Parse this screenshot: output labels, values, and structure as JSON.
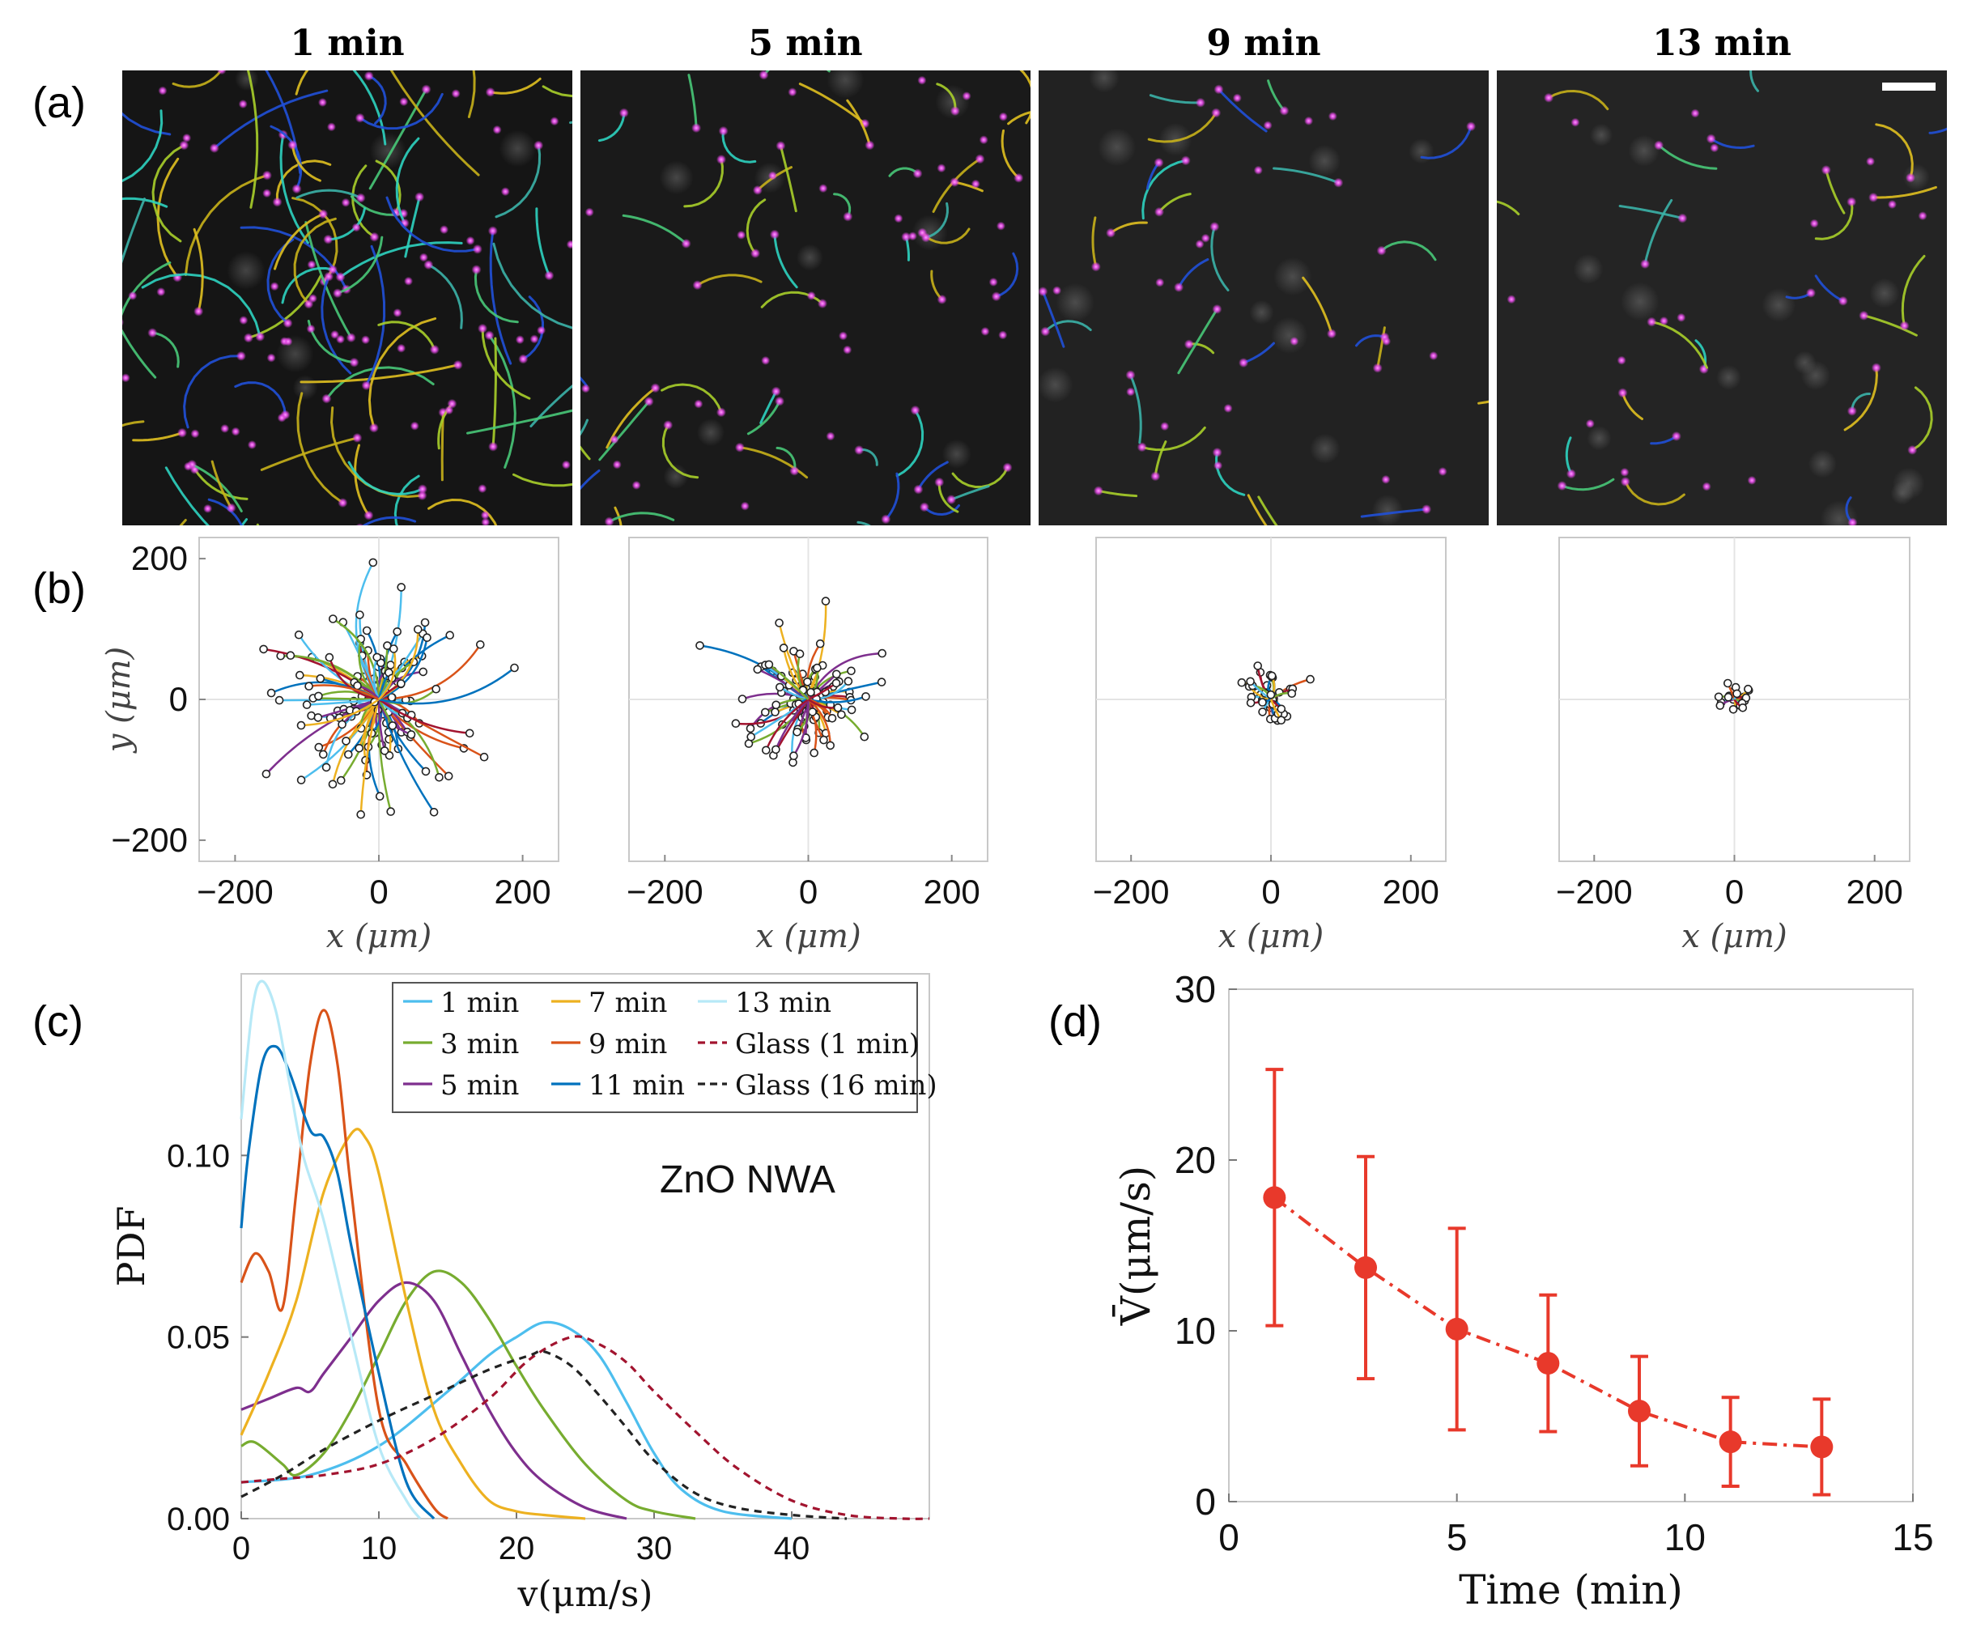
{
  "panel_labels": {
    "a": "(a)",
    "b": "(b)",
    "c": "(c)",
    "d": "(d)"
  },
  "panel_a": {
    "times": [
      "1 min",
      "5 min",
      "9 min",
      "13 min"
    ],
    "density": [
      1.0,
      0.55,
      0.35,
      0.3
    ],
    "track_colors": [
      "#2ed3c0",
      "#3bb3a8",
      "#c8b11a",
      "#a8cf2a",
      "#2050d8",
      "#48c878",
      "#e0c020"
    ],
    "dot_color": "#e64be8"
  },
  "chart_data": [
    {
      "type": "scatter",
      "panel": "b",
      "time": "1 min",
      "xlabel": "x (μm)",
      "ylabel": "y (μm)",
      "xticks": [
        -200,
        0,
        200
      ],
      "yticks": [
        200,
        0,
        -200
      ],
      "xlim": [
        -250,
        250
      ],
      "ylim": [
        -230,
        230
      ],
      "spread": 95,
      "n_tracks": 140,
      "grid": true,
      "note": "trajectories from origin, open circles at endpoints"
    },
    {
      "type": "scatter",
      "panel": "b",
      "time": "5 min",
      "xlabel": "x (μm)",
      "xticks": [
        -200,
        0,
        200
      ],
      "xlim": [
        -250,
        250
      ],
      "ylim": [
        -230,
        230
      ],
      "spread": 50,
      "n_tracks": 110,
      "grid": true
    },
    {
      "type": "scatter",
      "panel": "b",
      "time": "9 min",
      "xlabel": "x (μm)",
      "xticks": [
        -200,
        0,
        200
      ],
      "xlim": [
        -250,
        250
      ],
      "ylim": [
        -230,
        230
      ],
      "spread": 28,
      "n_tracks": 45,
      "grid": true
    },
    {
      "type": "scatter",
      "panel": "b",
      "time": "13 min",
      "xlabel": "x (μm)",
      "xticks": [
        -200,
        0,
        200
      ],
      "xlim": [
        -250,
        250
      ],
      "ylim": [
        -230,
        230
      ],
      "spread": 18,
      "n_tracks": 22,
      "grid": true
    },
    {
      "type": "line",
      "panel": "c",
      "xlabel": "v(μm/s)",
      "ylabel": "PDF",
      "xlim": [
        0,
        50
      ],
      "ylim": [
        0,
        0.15
      ],
      "xticks": [
        0,
        10,
        20,
        30,
        40
      ],
      "yticks": [
        0.0,
        0.05,
        0.1
      ],
      "ytick_labels": [
        "0.00",
        "0.05",
        "0.10"
      ],
      "annotation": "ZnO NWA",
      "legend_position": "top-right",
      "series": [
        {
          "name": "1 min",
          "color": "#4dbeee",
          "dash": "solid",
          "x": [
            0,
            5,
            10,
            15,
            18,
            20,
            22,
            24,
            26,
            28,
            30,
            32,
            35,
            40
          ],
          "y": [
            0.01,
            0.012,
            0.02,
            0.035,
            0.045,
            0.05,
            0.054,
            0.052,
            0.045,
            0.032,
            0.018,
            0.008,
            0.002,
            0.0
          ]
        },
        {
          "name": "3 min",
          "color": "#77ac30",
          "dash": "solid",
          "x": [
            0,
            1,
            3,
            4,
            6,
            8,
            10,
            12,
            14,
            16,
            18,
            20,
            22,
            25,
            28,
            30,
            33
          ],
          "y": [
            0.02,
            0.021,
            0.015,
            0.012,
            0.018,
            0.03,
            0.045,
            0.06,
            0.068,
            0.065,
            0.055,
            0.042,
            0.03,
            0.015,
            0.005,
            0.002,
            0.0
          ]
        },
        {
          "name": "5 min",
          "color": "#7e2f8e",
          "dash": "solid",
          "x": [
            0,
            2,
            4,
            5,
            6,
            8,
            10,
            12,
            14,
            16,
            18,
            20,
            22,
            25,
            28
          ],
          "y": [
            0.03,
            0.033,
            0.036,
            0.035,
            0.04,
            0.05,
            0.06,
            0.065,
            0.06,
            0.045,
            0.03,
            0.018,
            0.01,
            0.003,
            0.0
          ]
        },
        {
          "name": "7 min",
          "color": "#edb120",
          "dash": "solid",
          "x": [
            0,
            2,
            4,
            6,
            8,
            9,
            10,
            12,
            14,
            16,
            18,
            20,
            22,
            25
          ],
          "y": [
            0.023,
            0.04,
            0.06,
            0.09,
            0.106,
            0.105,
            0.095,
            0.06,
            0.03,
            0.015,
            0.005,
            0.002,
            0.001,
            0.0
          ]
        },
        {
          "name": "9 min",
          "color": "#d95319",
          "dash": "solid",
          "x": [
            0,
            1,
            2,
            3,
            4,
            5,
            6,
            7,
            8,
            10,
            12,
            14,
            15
          ],
          "y": [
            0.065,
            0.073,
            0.068,
            0.058,
            0.09,
            0.125,
            0.14,
            0.125,
            0.09,
            0.03,
            0.015,
            0.003,
            0.0
          ]
        },
        {
          "name": "11 min",
          "color": "#0072bd",
          "dash": "solid",
          "x": [
            0,
            0.5,
            1.5,
            2.5,
            3.5,
            5,
            6,
            7,
            8,
            10,
            12,
            14
          ],
          "y": [
            0.08,
            0.1,
            0.125,
            0.13,
            0.123,
            0.107,
            0.105,
            0.095,
            0.075,
            0.04,
            0.01,
            0.0
          ]
        },
        {
          "name": "13 min",
          "color": "#b7e9f7",
          "dash": "solid",
          "x": [
            0,
            0.8,
            1.5,
            2.5,
            3.5,
            4.5,
            6,
            8,
            10,
            12,
            13
          ],
          "y": [
            0.11,
            0.14,
            0.148,
            0.14,
            0.12,
            0.1,
            0.082,
            0.05,
            0.02,
            0.005,
            0.0
          ]
        },
        {
          "name": "Glass (1 min)",
          "color": "#a2142f",
          "dash": "dashed",
          "x": [
            0,
            3,
            6,
            10,
            14,
            18,
            21,
            24,
            26,
            28,
            30,
            33,
            36,
            40,
            44,
            48,
            50
          ],
          "y": [
            0.01,
            0.011,
            0.012,
            0.015,
            0.022,
            0.033,
            0.044,
            0.05,
            0.048,
            0.043,
            0.035,
            0.024,
            0.014,
            0.005,
            0.001,
            0.0,
            0.0
          ]
        },
        {
          "name": "Glass (16 min)",
          "color": "#222222",
          "dash": "dashed",
          "x": [
            0,
            3,
            6,
            10,
            14,
            18,
            21,
            22,
            24,
            26,
            28,
            30,
            33,
            36,
            40,
            44
          ],
          "y": [
            0.006,
            0.012,
            0.019,
            0.027,
            0.034,
            0.041,
            0.045,
            0.046,
            0.042,
            0.034,
            0.025,
            0.016,
            0.007,
            0.003,
            0.001,
            0.0
          ]
        }
      ]
    },
    {
      "type": "line",
      "panel": "d",
      "xlabel": "Time (min)",
      "ylabel": "V̄(μm/s)",
      "xlim": [
        0,
        15
      ],
      "ylim": [
        0,
        30
      ],
      "xticks": [
        0,
        5,
        10,
        15
      ],
      "yticks": [
        0,
        10,
        20,
        30
      ],
      "color": "#e8392b",
      "dash": "dash-dot",
      "marker": "circle",
      "x": [
        1,
        3,
        5,
        7,
        9,
        11,
        13
      ],
      "y": [
        17.8,
        13.7,
        10.1,
        8.1,
        5.3,
        3.5,
        3.2
      ],
      "yerr": [
        7.5,
        6.5,
        5.9,
        4.0,
        3.2,
        2.6,
        2.8
      ]
    }
  ]
}
